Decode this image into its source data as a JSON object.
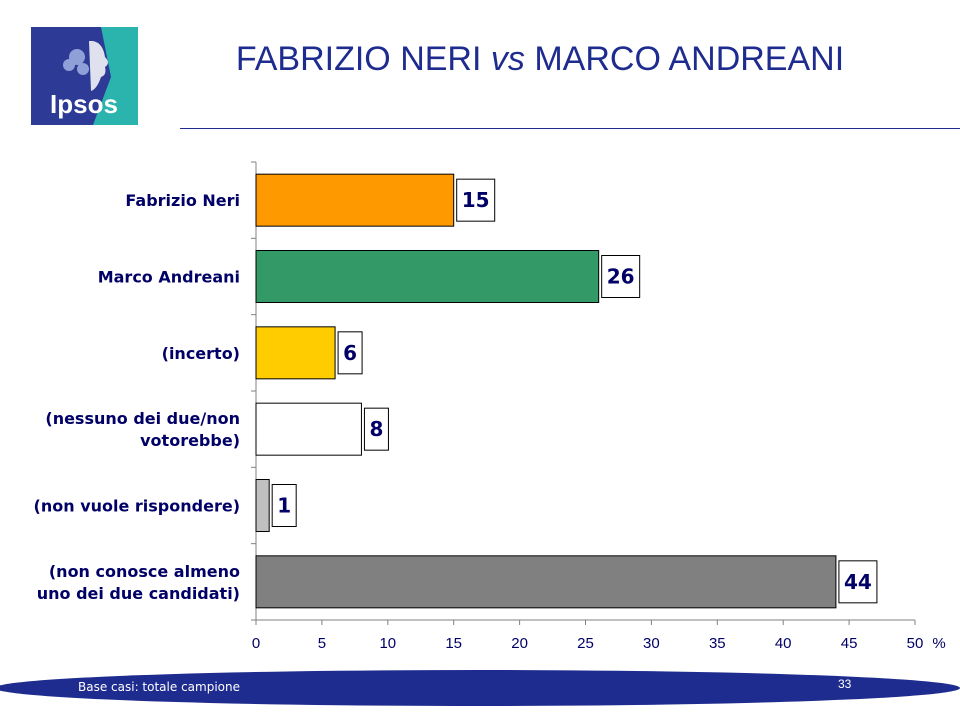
{
  "header": {
    "logo_text": "Ipsos",
    "title_before": "FABRIZIO NERI ",
    "title_italic": "vs",
    "title_after": " MARCO ANDREANI"
  },
  "colors": {
    "title": "#1f2c8f",
    "footer": "#1f2c8f",
    "logo_blue": "#2d3a96",
    "logo_teal": "#2bb3ae"
  },
  "chart_data": {
    "type": "bar",
    "orientation": "horizontal",
    "categories": [
      [
        "Fabrizio Neri"
      ],
      [
        "Marco Andreani"
      ],
      [
        "(incerto)"
      ],
      [
        "(nessuno dei due/non",
        "votorebbe)"
      ],
      [
        "(non vuole rispondere)"
      ],
      [
        "(non conosce almeno",
        "uno dei due candidati)"
      ]
    ],
    "values": [
      15,
      26,
      6,
      8,
      1,
      44
    ],
    "bar_colors": [
      "#ff9900",
      "#339966",
      "#ffcc00",
      "#ffffff",
      "#c0c0c0",
      "#808080"
    ],
    "xlim": [
      0,
      50
    ],
    "xticks": [
      0,
      5,
      10,
      15,
      20,
      25,
      30,
      35,
      40,
      45,
      50
    ],
    "x_unit": "%",
    "grid": false
  },
  "footer": {
    "note": "Base casi: totale campione",
    "page_number": "33"
  }
}
